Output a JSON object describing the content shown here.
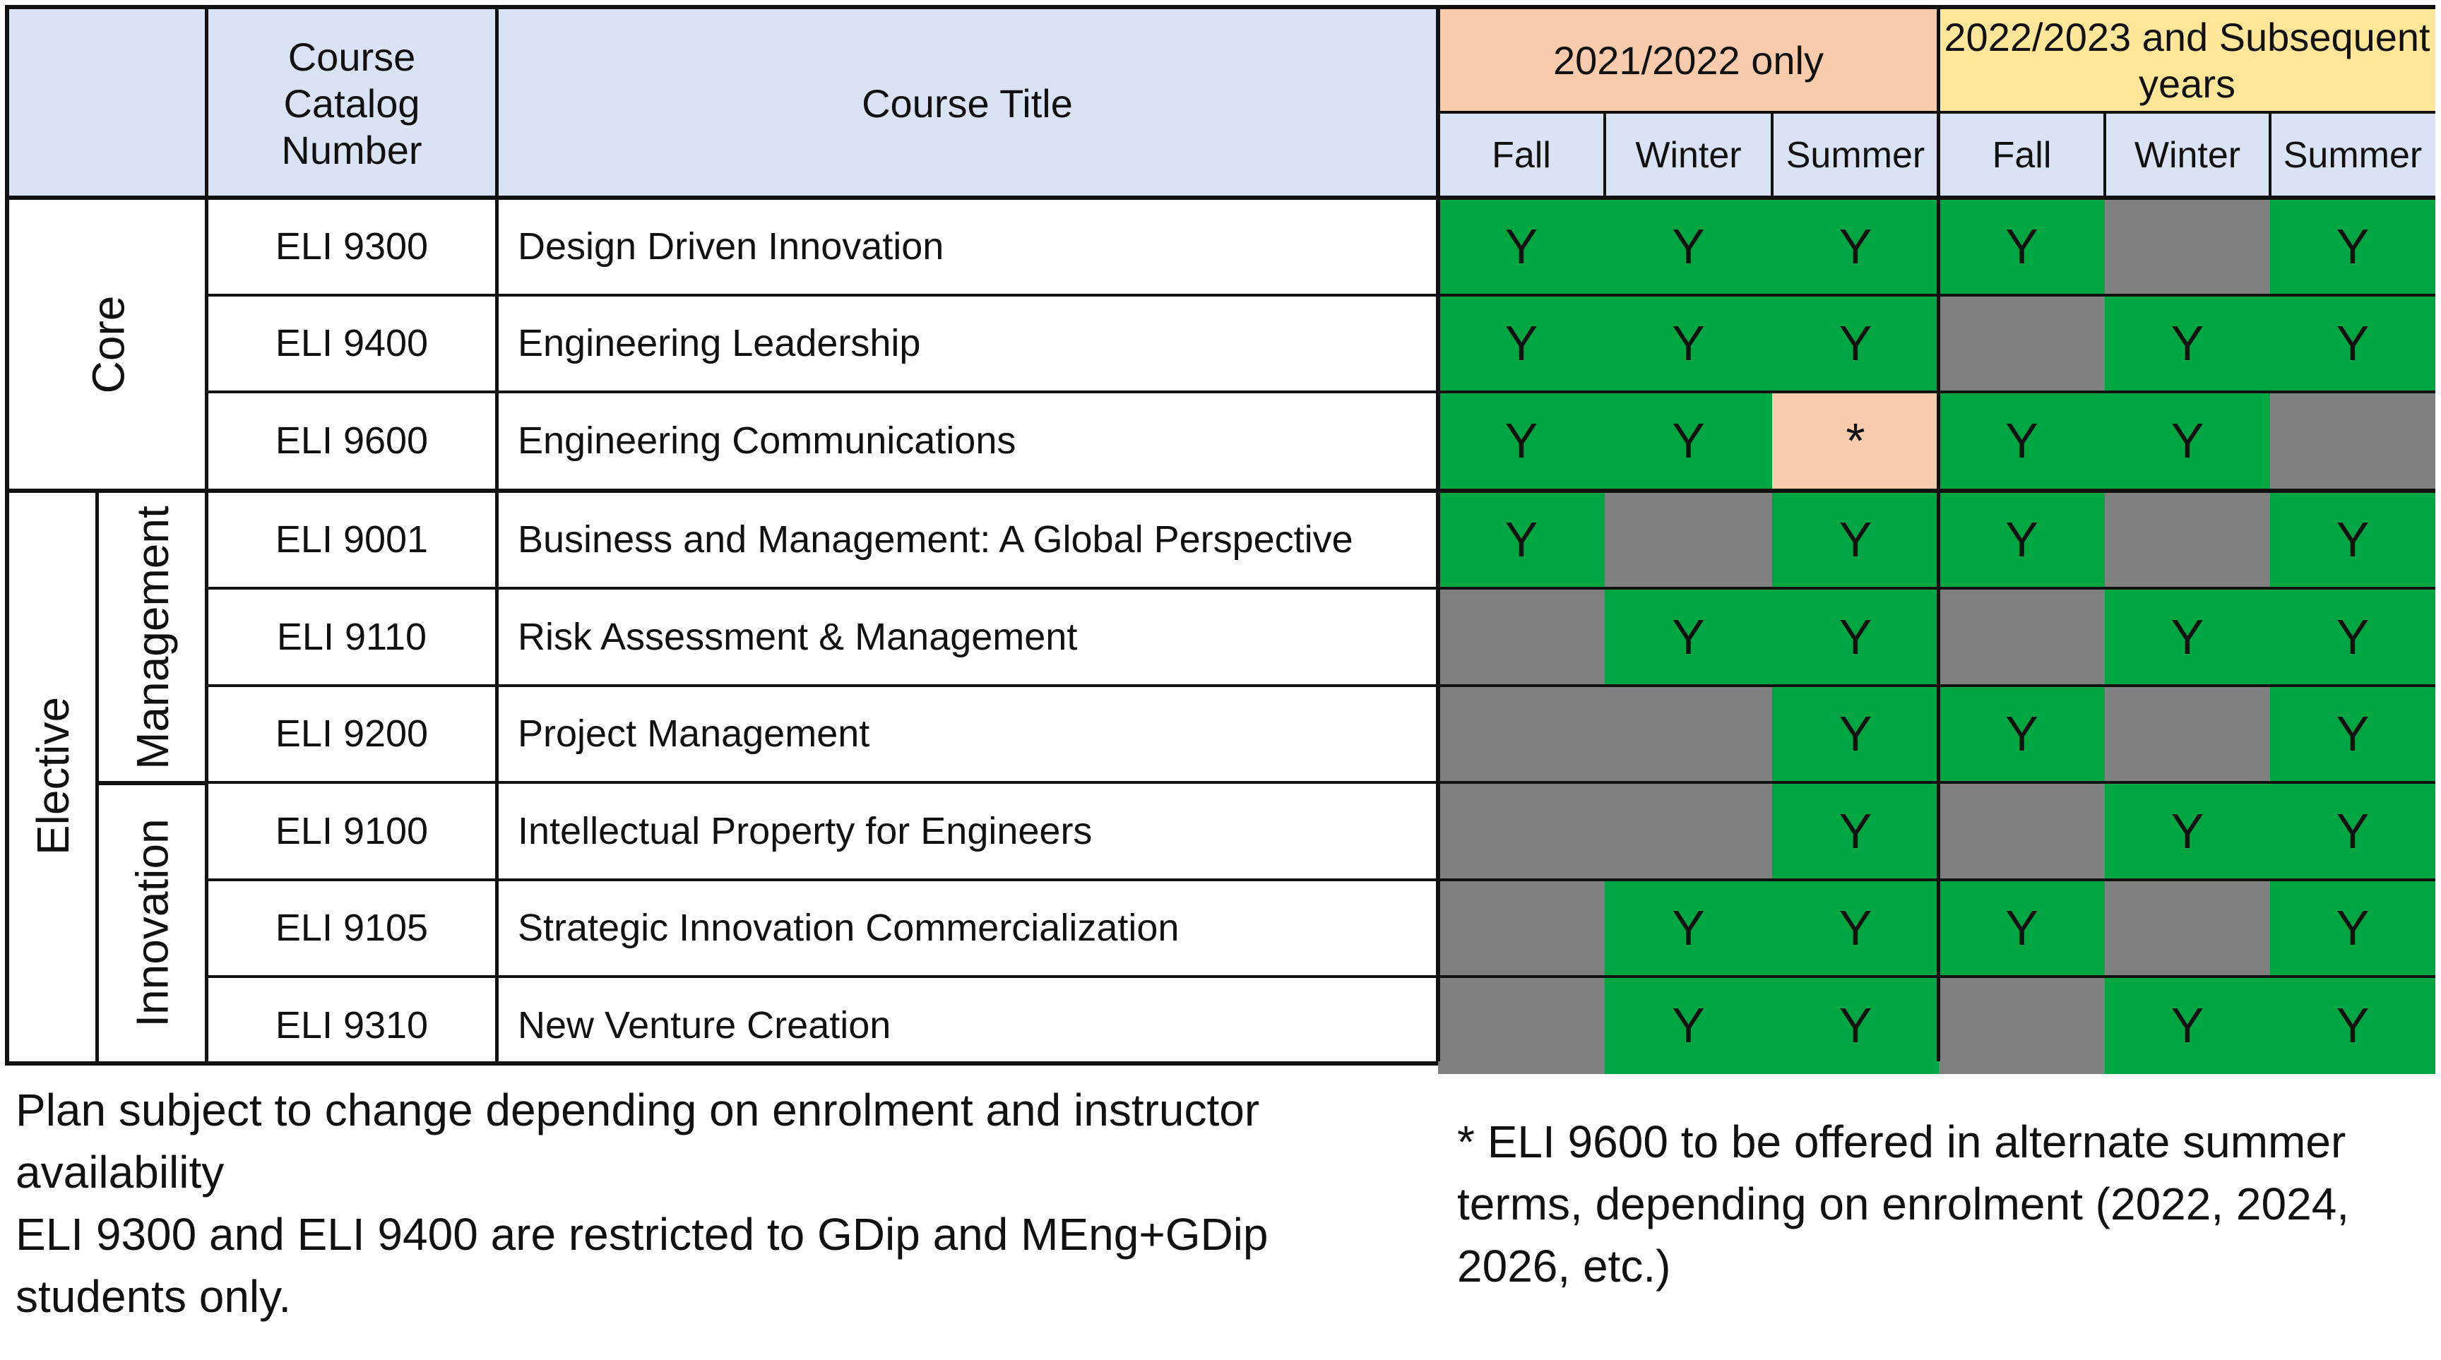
{
  "table": {
    "header": {
      "catalog_number": "Course Catalog Number",
      "course_title": "Course Title",
      "year_groups": [
        {
          "label": "2021/2022 only",
          "color": "#f8cbad"
        },
        {
          "label": "2022/2023 and Subsequent years",
          "color": "#ffe699"
        }
      ],
      "terms": [
        "Fall",
        "Winter",
        "Summer",
        "Fall",
        "Winter",
        "Summer"
      ]
    },
    "groups": {
      "core": "Core",
      "elective": "Elective",
      "management": "Management",
      "innovation": "Innovation"
    },
    "rows": [
      {
        "code": "ELI 9300",
        "title": "Design Driven Innovation",
        "cells": [
          "Y",
          "Y",
          "Y",
          "Y",
          "",
          "Y"
        ]
      },
      {
        "code": "ELI 9400",
        "title": "Engineering Leadership",
        "cells": [
          "Y",
          "Y",
          "Y",
          "",
          "Y",
          "Y"
        ]
      },
      {
        "code": "ELI 9600",
        "title": "Engineering Communications",
        "cells": [
          "Y",
          "Y",
          "*",
          "Y",
          "Y",
          ""
        ]
      },
      {
        "code": "ELI 9001",
        "title": "Business and Management: A Global Perspective",
        "cells": [
          "Y",
          "",
          "Y",
          "Y",
          "",
          "Y"
        ]
      },
      {
        "code": "ELI 9110",
        "title": "Risk Assessment & Management",
        "cells": [
          "",
          "Y",
          "Y",
          "",
          "Y",
          "Y"
        ]
      },
      {
        "code": "ELI 9200",
        "title": "Project Management",
        "cells": [
          "",
          "",
          "Y",
          "Y",
          "",
          "Y"
        ]
      },
      {
        "code": "ELI 9100",
        "title": "Intellectual Property for Engineers",
        "cells": [
          "",
          "",
          "Y",
          "",
          "Y",
          "Y"
        ]
      },
      {
        "code": "ELI 9105",
        "title": "Strategic Innovation Commercialization",
        "cells": [
          "",
          "Y",
          "Y",
          "Y",
          "",
          "Y"
        ]
      },
      {
        "code": "ELI 9310",
        "title": "New Venture Creation",
        "cells": [
          "",
          "Y",
          "Y",
          "",
          "Y",
          "Y"
        ]
      }
    ],
    "colors": {
      "available": "#00a641",
      "unavailable": "#808080",
      "alternate": "#f8cbad",
      "header": "#dae3f3"
    }
  },
  "notes": {
    "left_lines": [
      "Plan subject to change depending on enrolment and instructor",
      "availability",
      "ELI 9300 and ELI 9400 are restricted to GDip and MEng+GDip",
      "students only."
    ],
    "right_lines": [
      "* ELI 9600 to be offered in alternate summer",
      "terms, depending on enrolment (2022, 2024,",
      "2026, etc.)"
    ]
  }
}
